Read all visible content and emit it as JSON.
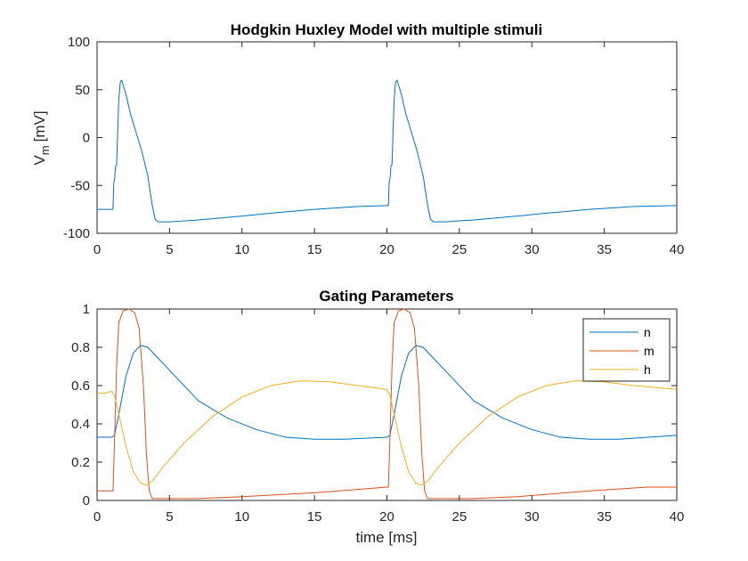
{
  "chart_data": [
    {
      "type": "line",
      "title": "Hodgkin Huxley Model with multiple stimuli",
      "xlabel": "",
      "ylabel_main": "V",
      "ylabel_sub": "m",
      "ylabel_unit": "[mV]",
      "xlim": [
        0,
        40
      ],
      "ylim": [
        -100,
        100
      ],
      "xticks": [
        "0",
        "5",
        "10",
        "15",
        "20",
        "25",
        "30",
        "35",
        "40"
      ],
      "yticks": [
        "-100",
        "-50",
        "0",
        "50",
        "100"
      ],
      "grid": false,
      "series": [
        {
          "color": "#0072BD",
          "points": [
            [
              0,
              -75
            ],
            [
              1,
              -75
            ],
            [
              1.1,
              -75
            ],
            [
              1.15,
              -48
            ],
            [
              1.22,
              -42
            ],
            [
              1.28,
              -30
            ],
            [
              1.35,
              -28
            ],
            [
              1.4,
              -5
            ],
            [
              1.5,
              40
            ],
            [
              1.6,
              58
            ],
            [
              1.7,
              60
            ],
            [
              1.8,
              55
            ],
            [
              2.0,
              45
            ],
            [
              2.3,
              25
            ],
            [
              2.7,
              5
            ],
            [
              3.1,
              -15
            ],
            [
              3.5,
              -40
            ],
            [
              3.8,
              -70
            ],
            [
              4.0,
              -85
            ],
            [
              4.2,
              -88
            ],
            [
              5,
              -88
            ],
            [
              7,
              -86
            ],
            [
              10,
              -82
            ],
            [
              12,
              -79
            ],
            [
              15,
              -75
            ],
            [
              18,
              -72
            ],
            [
              20,
              -71
            ],
            [
              20.1,
              -71
            ],
            [
              20.15,
              -48
            ],
            [
              20.22,
              -42
            ],
            [
              20.28,
              -30
            ],
            [
              20.35,
              -28
            ],
            [
              20.4,
              -5
            ],
            [
              20.5,
              40
            ],
            [
              20.6,
              58
            ],
            [
              20.7,
              60
            ],
            [
              20.8,
              55
            ],
            [
              21.0,
              45
            ],
            [
              21.3,
              25
            ],
            [
              21.7,
              5
            ],
            [
              22.1,
              -15
            ],
            [
              22.5,
              -40
            ],
            [
              22.8,
              -70
            ],
            [
              23.0,
              -85
            ],
            [
              23.2,
              -88
            ],
            [
              24,
              -88
            ],
            [
              26,
              -86
            ],
            [
              29,
              -82
            ],
            [
              31,
              -79
            ],
            [
              34,
              -75
            ],
            [
              37,
              -72
            ],
            [
              40,
              -71
            ]
          ]
        }
      ]
    },
    {
      "type": "line",
      "title": "Gating Parameters",
      "xlabel": "time [ms]",
      "ylabel": "",
      "xlim": [
        0,
        40
      ],
      "ylim": [
        0,
        1
      ],
      "xticks": [
        "0",
        "5",
        "10",
        "15",
        "20",
        "25",
        "30",
        "35",
        "40"
      ],
      "yticks": [
        "0",
        "0.2",
        "0.4",
        "0.6",
        "0.8",
        "1"
      ],
      "grid": false,
      "legend": "top-right",
      "series": [
        {
          "name": "n",
          "color": "#0072BD",
          "points": [
            [
              0,
              0.33
            ],
            [
              1,
              0.33
            ],
            [
              1.2,
              0.34
            ],
            [
              1.5,
              0.45
            ],
            [
              2.0,
              0.65
            ],
            [
              2.5,
              0.77
            ],
            [
              3.0,
              0.81
            ],
            [
              3.5,
              0.8
            ],
            [
              4.0,
              0.76
            ],
            [
              5,
              0.68
            ],
            [
              7,
              0.52
            ],
            [
              9,
              0.43
            ],
            [
              11,
              0.37
            ],
            [
              13,
              0.33
            ],
            [
              15,
              0.32
            ],
            [
              17,
              0.32
            ],
            [
              20,
              0.33
            ],
            [
              20.2,
              0.34
            ],
            [
              20.5,
              0.45
            ],
            [
              21.0,
              0.65
            ],
            [
              21.5,
              0.77
            ],
            [
              22.0,
              0.81
            ],
            [
              22.5,
              0.8
            ],
            [
              23.0,
              0.76
            ],
            [
              24,
              0.68
            ],
            [
              26,
              0.52
            ],
            [
              28,
              0.43
            ],
            [
              30,
              0.37
            ],
            [
              32,
              0.33
            ],
            [
              34,
              0.32
            ],
            [
              36,
              0.32
            ],
            [
              40,
              0.34
            ]
          ]
        },
        {
          "name": "m",
          "color": "#D95319",
          "points": [
            [
              0,
              0.05
            ],
            [
              1,
              0.05
            ],
            [
              1.1,
              0.05
            ],
            [
              1.2,
              0.3
            ],
            [
              1.35,
              0.7
            ],
            [
              1.5,
              0.93
            ],
            [
              1.8,
              0.99
            ],
            [
              2.2,
              1.0
            ],
            [
              2.6,
              0.98
            ],
            [
              2.9,
              0.9
            ],
            [
              3.2,
              0.6
            ],
            [
              3.4,
              0.25
            ],
            [
              3.6,
              0.05
            ],
            [
              3.8,
              0.01
            ],
            [
              4.5,
              0.01
            ],
            [
              7,
              0.01
            ],
            [
              10,
              0.02
            ],
            [
              15,
              0.04
            ],
            [
              20,
              0.07
            ],
            [
              20.1,
              0.07
            ],
            [
              20.2,
              0.3
            ],
            [
              20.35,
              0.7
            ],
            [
              20.5,
              0.93
            ],
            [
              20.8,
              0.99
            ],
            [
              21.2,
              1.0
            ],
            [
              21.6,
              0.98
            ],
            [
              21.9,
              0.9
            ],
            [
              22.2,
              0.6
            ],
            [
              22.4,
              0.25
            ],
            [
              22.6,
              0.05
            ],
            [
              22.8,
              0.01
            ],
            [
              23.5,
              0.01
            ],
            [
              26,
              0.01
            ],
            [
              29,
              0.02
            ],
            [
              34,
              0.05
            ],
            [
              38,
              0.07
            ],
            [
              40,
              0.07
            ]
          ]
        },
        {
          "name": "h",
          "color": "#EDB120",
          "points": [
            [
              0,
              0.56
            ],
            [
              0.5,
              0.56
            ],
            [
              1,
              0.57
            ],
            [
              1.2,
              0.55
            ],
            [
              1.5,
              0.45
            ],
            [
              2.0,
              0.28
            ],
            [
              2.5,
              0.15
            ],
            [
              3.0,
              0.09
            ],
            [
              3.4,
              0.08
            ],
            [
              3.8,
              0.1
            ],
            [
              4.5,
              0.17
            ],
            [
              6,
              0.3
            ],
            [
              8,
              0.44
            ],
            [
              10,
              0.54
            ],
            [
              12,
              0.6
            ],
            [
              14,
              0.625
            ],
            [
              16,
              0.62
            ],
            [
              18,
              0.6
            ],
            [
              20,
              0.58
            ],
            [
              20.2,
              0.55
            ],
            [
              20.5,
              0.45
            ],
            [
              21.0,
              0.28
            ],
            [
              21.5,
              0.15
            ],
            [
              22.0,
              0.09
            ],
            [
              22.4,
              0.08
            ],
            [
              22.8,
              0.1
            ],
            [
              23.5,
              0.17
            ],
            [
              25,
              0.3
            ],
            [
              27,
              0.44
            ],
            [
              29,
              0.54
            ],
            [
              31,
              0.6
            ],
            [
              33,
              0.625
            ],
            [
              35,
              0.62
            ],
            [
              37,
              0.6
            ],
            [
              40,
              0.58
            ]
          ]
        }
      ]
    }
  ]
}
